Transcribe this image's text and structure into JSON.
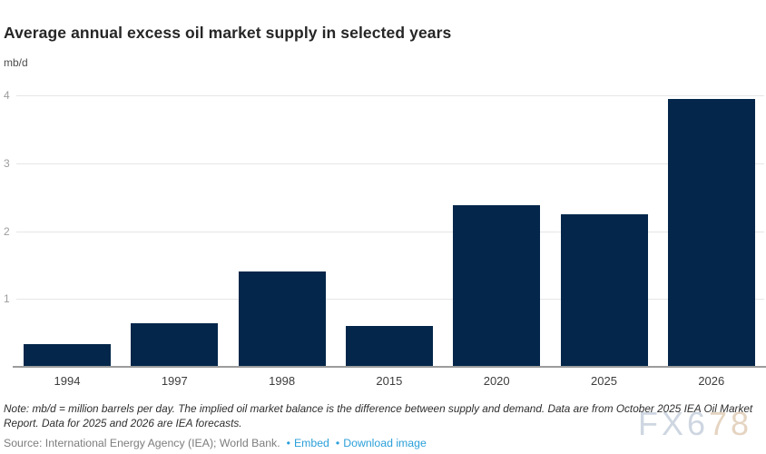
{
  "header": {
    "title": "Average annual excess oil market supply in selected years",
    "unit": "mb/d"
  },
  "chart_data": {
    "type": "bar",
    "title": "Average annual excess oil market supply in selected years",
    "categories": [
      "1994",
      "1997",
      "1998",
      "2015",
      "2020",
      "2025",
      "2026"
    ],
    "values": [
      0.33,
      0.64,
      1.41,
      0.6,
      2.38,
      2.25,
      3.95
    ],
    "xlabel": "",
    "ylabel": "mb/d",
    "ylim": [
      0,
      4
    ],
    "yticks": [
      1,
      2,
      3,
      4
    ],
    "grid": true,
    "legend": false,
    "bar_color": "#03264a",
    "gridline_color": "#e6e6e6",
    "axis_line_color": "#9c9c9c"
  },
  "footer": {
    "note": "Note: mb/d = million barrels per day. The implied oil market balance is the difference between supply and demand. Data are from October 2025 IEA Oil Market Report. Data for 2025 and 2026 are IEA forecasts.",
    "source": "Source: International Energy Agency (IEA); World Bank.",
    "bullet": "•",
    "links": [
      {
        "label": "Embed"
      },
      {
        "label": "Download image"
      }
    ],
    "link_color": "#2b9fd9"
  },
  "watermark": {
    "text": "FX678",
    "part1": "FX6",
    "part2": "78"
  }
}
